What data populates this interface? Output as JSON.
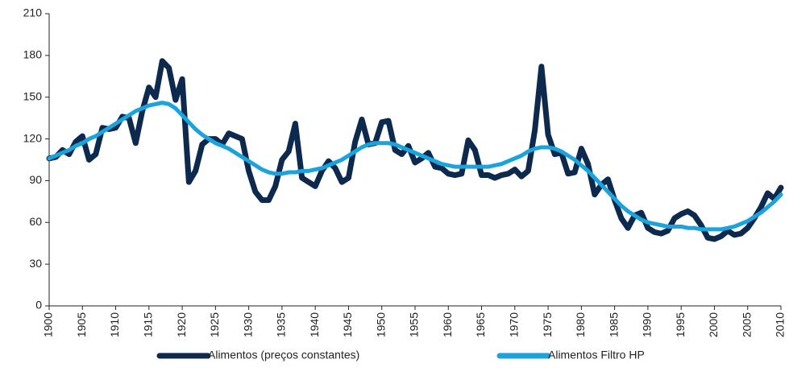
{
  "chart_data": {
    "type": "line",
    "x": [
      1900,
      1901,
      1902,
      1903,
      1904,
      1905,
      1906,
      1907,
      1908,
      1909,
      1910,
      1911,
      1912,
      1913,
      1914,
      1915,
      1916,
      1917,
      1918,
      1919,
      1920,
      1921,
      1922,
      1923,
      1924,
      1925,
      1926,
      1927,
      1928,
      1929,
      1930,
      1931,
      1932,
      1933,
      1934,
      1935,
      1936,
      1937,
      1938,
      1939,
      1940,
      1941,
      1942,
      1943,
      1944,
      1945,
      1946,
      1947,
      1948,
      1949,
      1950,
      1951,
      1952,
      1953,
      1954,
      1955,
      1956,
      1957,
      1958,
      1959,
      1960,
      1961,
      1962,
      1963,
      1964,
      1965,
      1966,
      1967,
      1968,
      1969,
      1970,
      1971,
      1972,
      1973,
      1974,
      1975,
      1976,
      1977,
      1978,
      1979,
      1980,
      1981,
      1982,
      1983,
      1984,
      1985,
      1986,
      1987,
      1988,
      1989,
      1990,
      1991,
      1992,
      1993,
      1994,
      1995,
      1996,
      1997,
      1998,
      1999,
      2000,
      2001,
      2002,
      2003,
      2004,
      2005,
      2006,
      2007,
      2008,
      2009,
      2010
    ],
    "series": [
      {
        "name": "Alimentos (preços constantes)",
        "color": "#0d2a4e",
        "values": [
          106,
          107,
          112,
          109,
          118,
          122,
          105,
          109,
          128,
          127,
          128,
          136,
          135,
          117,
          140,
          157,
          150,
          176,
          171,
          148,
          163,
          89,
          97,
          116,
          120,
          120,
          116,
          124,
          122,
          120,
          97,
          82,
          76,
          76,
          86,
          105,
          111,
          131,
          92,
          89,
          86,
          97,
          104,
          99,
          89,
          92,
          118,
          134,
          116,
          117,
          132,
          133,
          112,
          109,
          115,
          103,
          106,
          110,
          100,
          99,
          95,
          94,
          95,
          119,
          112,
          94,
          94,
          92,
          94,
          95,
          98,
          93,
          97,
          126,
          172,
          123,
          109,
          110,
          95,
          96,
          113,
          102,
          80,
          87,
          91,
          76,
          63,
          56,
          65,
          67,
          56,
          53,
          52,
          54,
          63,
          66,
          68,
          65,
          58,
          49,
          48,
          50,
          54,
          51,
          52,
          56,
          63,
          71,
          81,
          77,
          85
        ]
      },
      {
        "name": "Alimentos Filtro HP",
        "color": "#1ba3dd",
        "values": [
          106,
          108,
          110,
          112,
          115,
          117,
          120,
          122,
          125,
          128,
          131,
          134,
          137,
          140,
          142,
          144,
          145,
          146,
          145,
          142,
          137,
          132,
          127,
          123,
          120,
          117,
          115,
          113,
          110,
          107,
          104,
          101,
          98,
          96,
          95,
          95,
          96,
          96,
          97,
          97,
          98,
          99,
          101,
          103,
          105,
          108,
          111,
          114,
          116,
          117,
          117,
          117,
          116,
          114,
          112,
          110,
          108,
          106,
          104,
          102,
          101,
          100,
          100,
          100,
          100,
          100,
          100,
          101,
          102,
          104,
          106,
          108,
          111,
          113,
          114,
          114,
          113,
          111,
          108,
          105,
          101,
          97,
          92,
          87,
          82,
          77,
          72,
          68,
          65,
          62,
          60,
          59,
          58,
          57,
          57,
          57,
          56,
          56,
          55,
          55,
          55,
          55,
          56,
          57,
          59,
          61,
          64,
          67,
          71,
          75,
          80
        ]
      }
    ],
    "xlim": [
      1900,
      2010
    ],
    "xticks": [
      1900,
      1905,
      1910,
      1915,
      1920,
      1925,
      1930,
      1935,
      1940,
      1945,
      1950,
      1955,
      1960,
      1965,
      1970,
      1975,
      1980,
      1985,
      1990,
      1995,
      2000,
      2005,
      2010
    ],
    "ylim": [
      0,
      210
    ],
    "yticks": [
      0,
      30,
      60,
      90,
      120,
      150,
      180,
      210
    ],
    "legend": "bottom"
  }
}
